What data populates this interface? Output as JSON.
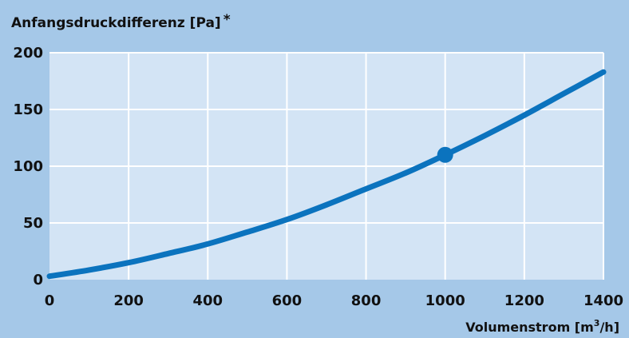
{
  "colors": {
    "frame_background": "#a5c8e8",
    "plot_background": "#d3e4f5",
    "grid": "#ffffff",
    "series": "#0b73be"
  },
  "chart_data": {
    "type": "line",
    "title": "",
    "ylabel": "Anfangsdruckdifferenz [Pa]",
    "ylabel_suffix": "*",
    "xlabel_prefix": "Volumenstrom [m",
    "xlabel_sup": "3",
    "xlabel_suffix": "/h]",
    "xlim": [
      0,
      1400
    ],
    "ylim": [
      0,
      200
    ],
    "xticks": [
      0,
      200,
      400,
      600,
      800,
      1000,
      1200,
      1400
    ],
    "yticks": [
      0,
      50,
      100,
      150,
      200
    ],
    "xtick_labels": [
      "0",
      "200",
      "400",
      "600",
      "800",
      "1000",
      "1200",
      "1400"
    ],
    "ytick_labels": [
      "0",
      "50",
      "100",
      "150",
      "200"
    ],
    "grid": true,
    "series": [
      {
        "x": [
          0,
          100,
          200,
          300,
          400,
          500,
          600,
          700,
          800,
          900,
          1000,
          1100,
          1200,
          1300,
          1400
        ],
        "values": [
          3,
          8.5,
          15,
          23,
          31.5,
          42,
          53,
          66,
          80,
          94,
          110,
          127,
          145,
          164,
          183
        ]
      }
    ],
    "highlight_point": {
      "x": 1000,
      "y": 110
    }
  }
}
